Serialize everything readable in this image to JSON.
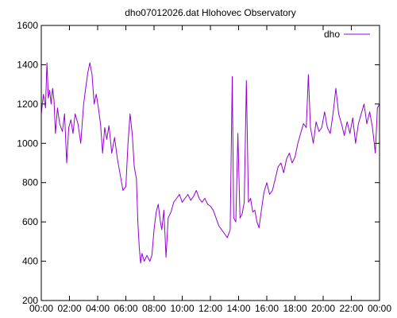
{
  "chart_data": {
    "type": "line",
    "title": "dho07012026.dat Hlohovec Observatory",
    "xlabel": "",
    "ylabel": "",
    "x_ticks": [
      "00:00",
      "02:00",
      "04:00",
      "06:00",
      "08:00",
      "10:00",
      "12:00",
      "14:00",
      "16:00",
      "18:00",
      "20:00",
      "22:00",
      "00:00"
    ],
    "xlim_hours": [
      0,
      24
    ],
    "ylim": [
      200,
      1600
    ],
    "y_ticks": [
      200,
      400,
      600,
      800,
      1000,
      1200,
      1400,
      1600
    ],
    "grid": false,
    "legend_position": "top-right",
    "series": [
      {
        "name": "dho",
        "color": "#9400d3",
        "points": [
          [
            0.0,
            1150
          ],
          [
            0.15,
            1250
          ],
          [
            0.3,
            1180
          ],
          [
            0.4,
            1410
          ],
          [
            0.5,
            1230
          ],
          [
            0.6,
            1270
          ],
          [
            0.7,
            1200
          ],
          [
            0.8,
            1280
          ],
          [
            0.9,
            1220
          ],
          [
            1.0,
            1050
          ],
          [
            1.15,
            1180
          ],
          [
            1.3,
            1100
          ],
          [
            1.5,
            1060
          ],
          [
            1.65,
            1150
          ],
          [
            1.8,
            900
          ],
          [
            1.95,
            1080
          ],
          [
            2.1,
            1120
          ],
          [
            2.25,
            1050
          ],
          [
            2.4,
            1150
          ],
          [
            2.6,
            1100
          ],
          [
            2.8,
            1000
          ],
          [
            3.0,
            1200
          ],
          [
            3.15,
            1280
          ],
          [
            3.3,
            1360
          ],
          [
            3.45,
            1410
          ],
          [
            3.6,
            1350
          ],
          [
            3.75,
            1200
          ],
          [
            3.9,
            1250
          ],
          [
            4.05,
            1180
          ],
          [
            4.2,
            1100
          ],
          [
            4.35,
            950
          ],
          [
            4.5,
            1080
          ],
          [
            4.65,
            1020
          ],
          [
            4.8,
            1090
          ],
          [
            5.0,
            950
          ],
          [
            5.2,
            1030
          ],
          [
            5.4,
            920
          ],
          [
            5.6,
            840
          ],
          [
            5.8,
            760
          ],
          [
            6.0,
            780
          ],
          [
            6.15,
            1000
          ],
          [
            6.3,
            1150
          ],
          [
            6.45,
            1050
          ],
          [
            6.6,
            880
          ],
          [
            6.75,
            820
          ],
          [
            6.85,
            600
          ],
          [
            6.95,
            470
          ],
          [
            7.05,
            390
          ],
          [
            7.15,
            440
          ],
          [
            7.3,
            400
          ],
          [
            7.5,
            430
          ],
          [
            7.7,
            400
          ],
          [
            7.85,
            430
          ],
          [
            8.0,
            560
          ],
          [
            8.15,
            650
          ],
          [
            8.3,
            690
          ],
          [
            8.45,
            600
          ],
          [
            8.55,
            560
          ],
          [
            8.7,
            660
          ],
          [
            8.85,
            420
          ],
          [
            9.0,
            620
          ],
          [
            9.2,
            650
          ],
          [
            9.4,
            700
          ],
          [
            9.6,
            720
          ],
          [
            9.8,
            740
          ],
          [
            10.0,
            700
          ],
          [
            10.2,
            720
          ],
          [
            10.4,
            740
          ],
          [
            10.6,
            710
          ],
          [
            10.8,
            730
          ],
          [
            11.0,
            760
          ],
          [
            11.2,
            720
          ],
          [
            11.4,
            700
          ],
          [
            11.6,
            720
          ],
          [
            11.8,
            690
          ],
          [
            12.0,
            680
          ],
          [
            12.2,
            660
          ],
          [
            12.4,
            620
          ],
          [
            12.6,
            580
          ],
          [
            12.8,
            560
          ],
          [
            13.0,
            540
          ],
          [
            13.2,
            520
          ],
          [
            13.4,
            560
          ],
          [
            13.55,
            1340
          ],
          [
            13.65,
            620
          ],
          [
            13.8,
            600
          ],
          [
            13.95,
            1050
          ],
          [
            14.1,
            620
          ],
          [
            14.25,
            640
          ],
          [
            14.4,
            700
          ],
          [
            14.55,
            1320
          ],
          [
            14.7,
            700
          ],
          [
            14.85,
            720
          ],
          [
            15.0,
            650
          ],
          [
            15.15,
            660
          ],
          [
            15.3,
            600
          ],
          [
            15.45,
            570
          ],
          [
            15.6,
            650
          ],
          [
            15.8,
            750
          ],
          [
            16.0,
            800
          ],
          [
            16.2,
            740
          ],
          [
            16.4,
            760
          ],
          [
            16.6,
            820
          ],
          [
            16.8,
            880
          ],
          [
            17.0,
            900
          ],
          [
            17.2,
            850
          ],
          [
            17.4,
            920
          ],
          [
            17.6,
            950
          ],
          [
            17.8,
            900
          ],
          [
            18.0,
            930
          ],
          [
            18.2,
            1000
          ],
          [
            18.4,
            1050
          ],
          [
            18.6,
            1100
          ],
          [
            18.8,
            1080
          ],
          [
            18.95,
            1350
          ],
          [
            19.1,
            1080
          ],
          [
            19.3,
            1000
          ],
          [
            19.5,
            1110
          ],
          [
            19.7,
            1060
          ],
          [
            19.9,
            1080
          ],
          [
            20.1,
            1160
          ],
          [
            20.3,
            1080
          ],
          [
            20.5,
            1050
          ],
          [
            20.7,
            1150
          ],
          [
            20.9,
            1280
          ],
          [
            21.1,
            1150
          ],
          [
            21.3,
            1100
          ],
          [
            21.5,
            1040
          ],
          [
            21.7,
            1110
          ],
          [
            21.9,
            1050
          ],
          [
            22.1,
            1130
          ],
          [
            22.3,
            1000
          ],
          [
            22.5,
            1100
          ],
          [
            22.7,
            1150
          ],
          [
            22.9,
            1200
          ],
          [
            23.1,
            1100
          ],
          [
            23.3,
            1160
          ],
          [
            23.5,
            1080
          ],
          [
            23.7,
            950
          ],
          [
            23.85,
            1180
          ],
          [
            24.0,
            1200
          ]
        ]
      }
    ]
  }
}
